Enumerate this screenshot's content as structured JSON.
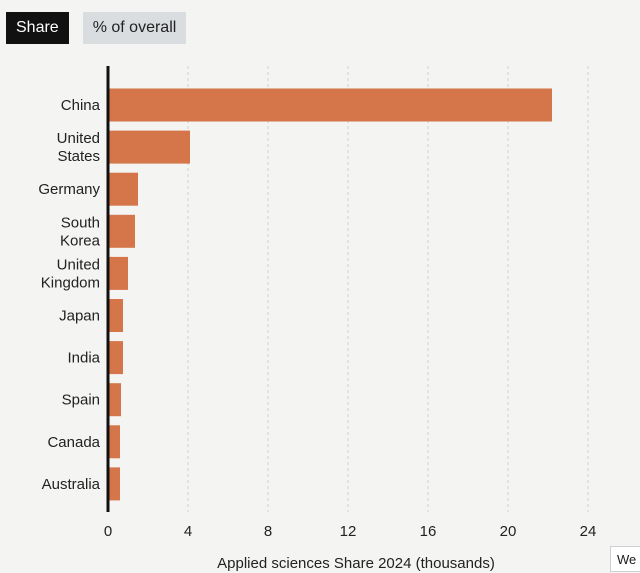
{
  "toggle": {
    "share_label": "Share",
    "percent_label": "% of overall"
  },
  "corner_text": "We",
  "colors": {
    "bar": "#d4764a",
    "grid": "#cfcfcf",
    "axis": "#111111"
  },
  "chart_data": {
    "type": "bar",
    "orientation": "horizontal",
    "categories": [
      "China",
      "United States",
      "Germany",
      "South Korea",
      "United Kingdom",
      "Japan",
      "India",
      "Spain",
      "Canada",
      "Australia"
    ],
    "category_lines": [
      [
        "China"
      ],
      [
        "United",
        "States"
      ],
      [
        "Germany"
      ],
      [
        "South",
        "Korea"
      ],
      [
        "United",
        "Kingdom"
      ],
      [
        "Japan"
      ],
      [
        "India"
      ],
      [
        "Spain"
      ],
      [
        "Canada"
      ],
      [
        "Australia"
      ]
    ],
    "values": [
      22.2,
      4.1,
      1.5,
      1.35,
      1.0,
      0.75,
      0.75,
      0.65,
      0.6,
      0.6
    ],
    "xlabel": "Applied sciences Share 2024 (thousands)",
    "xlim": [
      0,
      24
    ],
    "xticks": [
      0,
      4,
      8,
      12,
      16,
      20,
      24
    ],
    "grid": "vertical-dashed"
  }
}
